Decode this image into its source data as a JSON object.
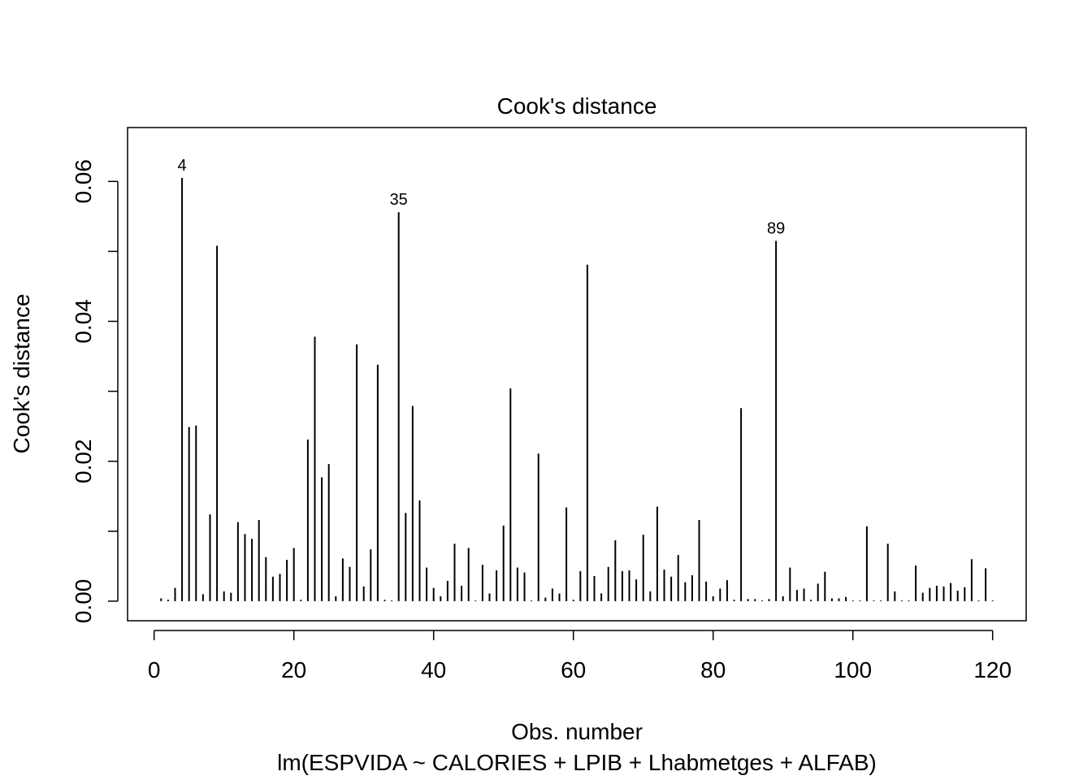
{
  "chart_data": {
    "type": "bar",
    "title": "Cook's distance",
    "xlabel": "Obs. number",
    "subtitle": "lm(ESPVIDA ~ CALORIES + LPIB + Lhabmetges + ALFAB)",
    "ylabel": "Cook's distance",
    "xlim": [
      -3.8,
      124.8
    ],
    "ylim": [
      -0.0028,
      0.0677
    ],
    "x_ticks": [
      "0",
      "20",
      "40",
      "60",
      "80",
      "100",
      "120"
    ],
    "y_ticks": [
      "0.00",
      "0.02",
      "0.04",
      "0.06"
    ],
    "x": [
      1,
      2,
      3,
      4,
      5,
      6,
      7,
      8,
      9,
      10,
      11,
      12,
      13,
      14,
      15,
      16,
      17,
      18,
      19,
      20,
      21,
      22,
      23,
      24,
      25,
      26,
      27,
      28,
      29,
      30,
      31,
      32,
      33,
      34,
      35,
      36,
      37,
      38,
      39,
      40,
      41,
      42,
      43,
      44,
      45,
      46,
      47,
      48,
      49,
      50,
      51,
      52,
      53,
      54,
      55,
      56,
      57,
      58,
      59,
      60,
      61,
      62,
      63,
      64,
      65,
      66,
      67,
      68,
      69,
      70,
      71,
      72,
      73,
      74,
      75,
      76,
      77,
      78,
      79,
      80,
      81,
      82,
      83,
      84,
      85,
      86,
      87,
      88,
      89,
      90,
      91,
      92,
      93,
      94,
      95,
      96,
      97,
      98,
      99,
      100,
      101,
      102,
      103,
      104,
      105,
      106,
      107,
      108,
      109,
      110,
      111,
      112,
      113,
      114,
      115,
      116,
      117,
      118,
      119,
      120
    ],
    "values": [
      0.0004,
      0.0002,
      0.0019,
      0.0605,
      0.0249,
      0.0251,
      0.001,
      0.0124,
      0.0508,
      0.0014,
      0.0012,
      0.0113,
      0.0096,
      0.0089,
      0.0116,
      0.0063,
      0.0035,
      0.0039,
      0.0059,
      0.0076,
      0.0002,
      0.0231,
      0.0378,
      0.0177,
      0.0196,
      0.0007,
      0.0061,
      0.0049,
      0.0367,
      0.0021,
      0.0074,
      0.0338,
      0.0002,
      0.0001,
      0.0556,
      0.0126,
      0.0279,
      0.0144,
      0.0048,
      0.0019,
      0.0007,
      0.0029,
      0.0082,
      0.0022,
      0.0076,
      0.0001,
      0.0052,
      0.0011,
      0.0044,
      0.0108,
      0.0304,
      0.0048,
      0.0041,
      0.0001,
      0.0211,
      0.0005,
      0.0018,
      0.0011,
      0.0134,
      0.0002,
      0.0043,
      0.0481,
      0.0036,
      0.0011,
      0.0049,
      0.0087,
      0.0043,
      0.0044,
      0.0031,
      0.0095,
      0.0014,
      0.0135,
      0.0045,
      0.0035,
      0.0066,
      0.0027,
      0.0037,
      0.0116,
      0.0028,
      0.0007,
      0.0018,
      0.003,
      0.0002,
      0.0276,
      0.0003,
      0.0003,
      0.0001,
      0.0003,
      0.0515,
      0.0007,
      0.0048,
      0.0016,
      0.0018,
      0.0002,
      0.0025,
      0.0042,
      0.0004,
      0.0004,
      0.0006,
      0.0001,
      0.0001,
      0.0107,
      0.0001,
      0.0001,
      0.0082,
      0.0014,
      0.0001,
      0.0001,
      0.0051,
      0.0012,
      0.0019,
      0.0022,
      0.0021,
      0.0026,
      0.0015,
      0.002,
      0.006,
      0.0001,
      0.0047,
      0.0001
    ],
    "annotations": [
      {
        "obs": 4,
        "label": "4"
      },
      {
        "obs": 35,
        "label": "35"
      },
      {
        "obs": 89,
        "label": "89"
      }
    ],
    "grid": false,
    "legend": "none"
  }
}
